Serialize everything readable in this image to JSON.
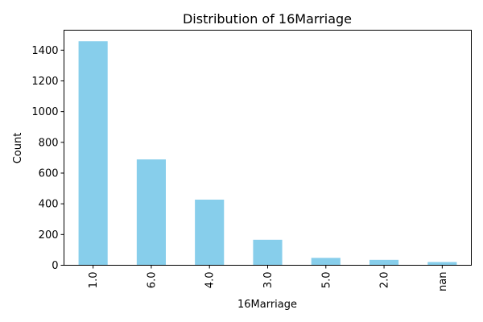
{
  "chart_data": {
    "type": "bar",
    "title": "Distribution of 16Marriage",
    "xlabel": "16Marriage",
    "ylabel": "Count",
    "categories": [
      "1.0",
      "6.0",
      "4.0",
      "3.0",
      "5.0",
      "2.0",
      "nan"
    ],
    "values": [
      1458,
      689,
      427,
      166,
      48,
      35,
      21
    ],
    "ylim": [
      0,
      1530
    ],
    "yticks": [
      0,
      200,
      400,
      600,
      800,
      1000,
      1200,
      1400
    ],
    "bar_color": "#87CEEB",
    "grid": false
  }
}
